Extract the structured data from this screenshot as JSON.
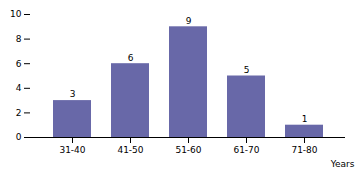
{
  "chart_data": {
    "type": "bar",
    "categories": [
      "31-40",
      "41-50",
      "51-60",
      "61-70",
      "71-80"
    ],
    "values": [
      3,
      6,
      9,
      5,
      1
    ],
    "color": "#6868a8",
    "xlabel": "Years",
    "ylim": [
      0,
      10
    ],
    "yticks": [
      0,
      2,
      4,
      6,
      8,
      10
    ],
    "data_labels": true
  }
}
